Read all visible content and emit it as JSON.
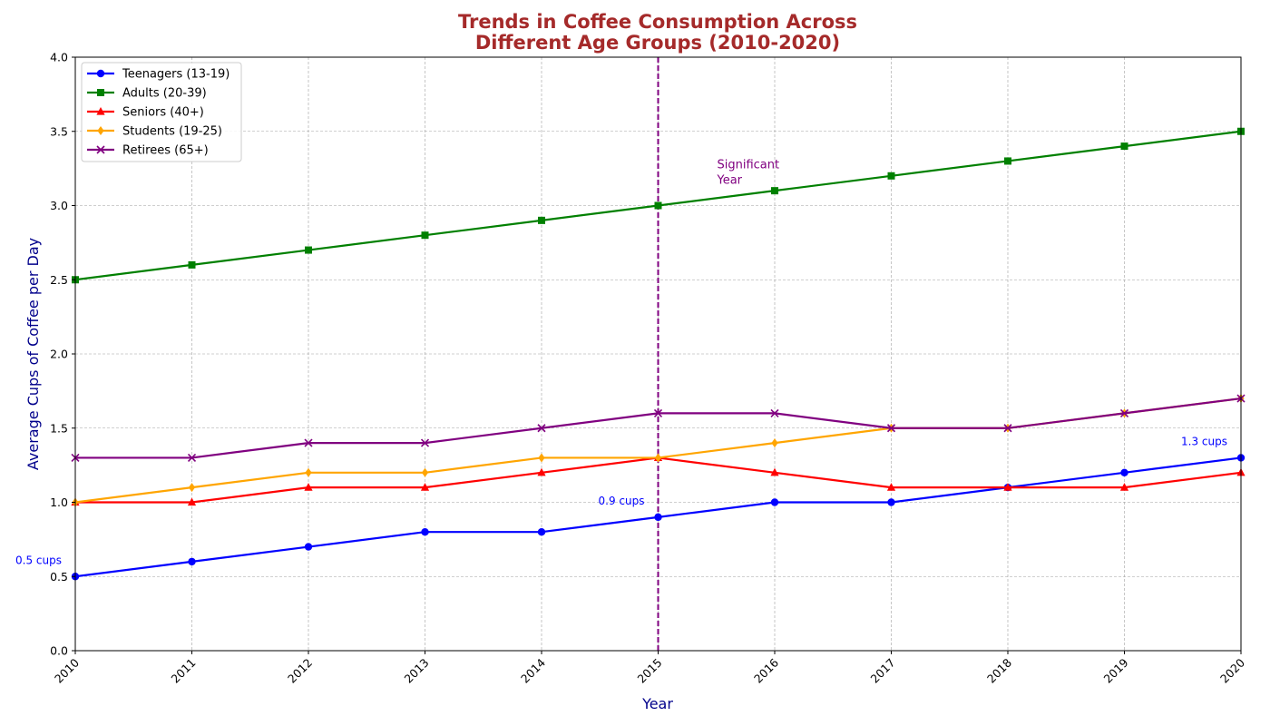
{
  "chart_data": {
    "type": "line",
    "title_lines": [
      "Trends in Coffee Consumption Across",
      "Different Age Groups (2010-2020)"
    ],
    "title_color": "#a52a2a",
    "xlabel": "Year",
    "ylabel": "Average Cups of Coffee per Day",
    "axis_label_color": "#00008b",
    "x": [
      2010,
      2011,
      2012,
      2013,
      2014,
      2015,
      2016,
      2017,
      2018,
      2019,
      2020
    ],
    "xlim": [
      2010,
      2020
    ],
    "ylim": [
      0,
      4
    ],
    "yticks": [
      0.0,
      0.5,
      1.0,
      1.5,
      2.0,
      2.5,
      3.0,
      3.5,
      4.0
    ],
    "ytick_labels": [
      "0.0",
      "0.5",
      "1.0",
      "1.5",
      "2.0",
      "2.5",
      "3.0",
      "3.5",
      "4.0"
    ],
    "xtick_labels": [
      "2010",
      "2011",
      "2012",
      "2013",
      "2014",
      "2015",
      "2016",
      "2017",
      "2018",
      "2019",
      "2020"
    ],
    "grid": true,
    "legend_position": "top-left",
    "series": [
      {
        "name": "Teenagers (13-19)",
        "color": "#0000ff",
        "marker": "circle",
        "values": [
          0.5,
          0.6,
          0.7,
          0.8,
          0.8,
          0.9,
          1.0,
          1.0,
          1.1,
          1.2,
          1.3
        ]
      },
      {
        "name": "Adults (20-39)",
        "color": "#008000",
        "marker": "square",
        "values": [
          2.5,
          2.6,
          2.7,
          2.8,
          2.9,
          3.0,
          3.1,
          3.2,
          3.3,
          3.4,
          3.5
        ]
      },
      {
        "name": "Seniors (40+)",
        "color": "#ff0000",
        "marker": "triangle",
        "values": [
          1.0,
          1.0,
          1.1,
          1.1,
          1.2,
          1.3,
          1.2,
          1.1,
          1.1,
          1.1,
          1.2
        ]
      },
      {
        "name": "Students (19-25)",
        "color": "#ffa500",
        "marker": "diamond",
        "values": [
          1.0,
          1.1,
          1.2,
          1.2,
          1.3,
          1.3,
          1.4,
          1.5,
          1.5,
          1.6,
          1.7
        ]
      },
      {
        "name": "Retirees (65+)",
        "color": "#800080",
        "marker": "x",
        "values": [
          1.3,
          1.3,
          1.4,
          1.4,
          1.5,
          1.6,
          1.6,
          1.5,
          1.5,
          1.6,
          1.7
        ]
      }
    ],
    "vline": {
      "x": 2015,
      "color": "#800080",
      "label_lines": [
        "Significant",
        "Year"
      ]
    },
    "annotations": [
      {
        "text": "0.5 cups",
        "x": 2010,
        "y": 0.5,
        "color": "#0000ff",
        "anchor": "before"
      },
      {
        "text": "0.9 cups",
        "x": 2015,
        "y": 0.9,
        "color": "#0000ff",
        "anchor": "before"
      },
      {
        "text": "1.3 cups",
        "x": 2020,
        "y": 1.3,
        "color": "#0000ff",
        "anchor": "before"
      }
    ]
  }
}
